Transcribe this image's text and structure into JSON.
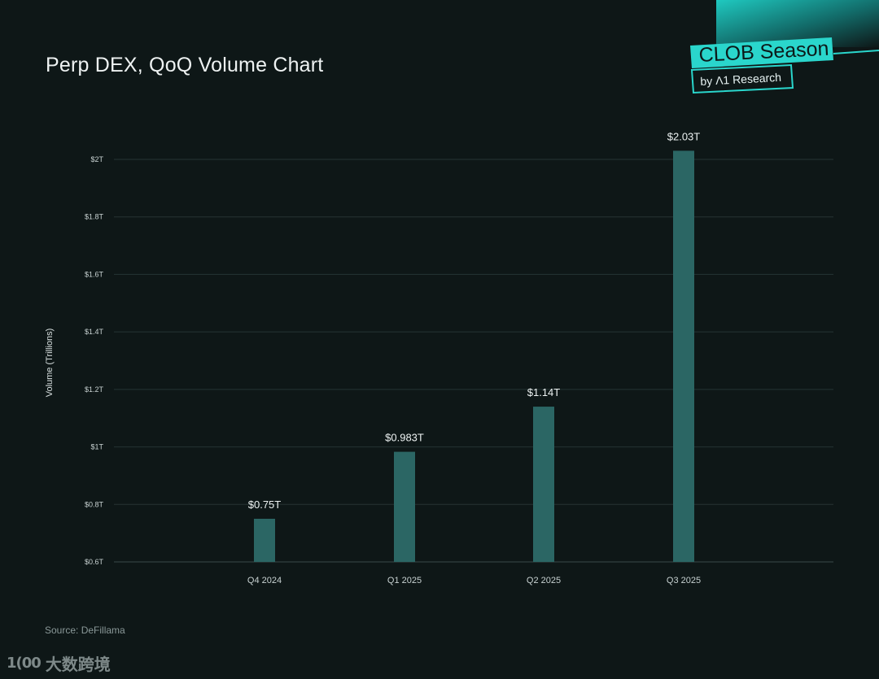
{
  "header": {
    "title": "Perp DEX, QoQ Volume Chart"
  },
  "badge": {
    "title": "CLOB Season",
    "subtitle": "by Λ1 Research"
  },
  "footer": {
    "source": "Source: DeFillama"
  },
  "watermark": {
    "logo": "1(00",
    "text": "大数跨境"
  },
  "colors": {
    "background": "#0e1717",
    "bar": "#2b6664",
    "accent": "#1ed2c8",
    "grid": "#263434"
  },
  "chart_data": {
    "type": "bar",
    "title": "Perp DEX, QoQ Volume Chart",
    "xlabel": "",
    "ylabel": "Volume (Trillions)",
    "categories": [
      "Q4 2024",
      "Q1 2025",
      "Q2 2025",
      "Q3 2025"
    ],
    "values": [
      0.75,
      0.983,
      1.14,
      2.03
    ],
    "data_labels": [
      "$0.75T",
      "$0.983T",
      "$1.14T",
      "$2.03T"
    ],
    "ylim": [
      0.6,
      2.0
    ],
    "yticks": [
      0.6,
      0.8,
      1.0,
      1.2,
      1.4,
      1.6,
      1.8,
      2.0
    ],
    "ytick_labels": [
      "$0.6T",
      "$0.8T",
      "$1T",
      "$1.2T",
      "$1.4T",
      "$1.6T",
      "$1.8T",
      "$2T"
    ],
    "grid": true,
    "legend": "none"
  }
}
